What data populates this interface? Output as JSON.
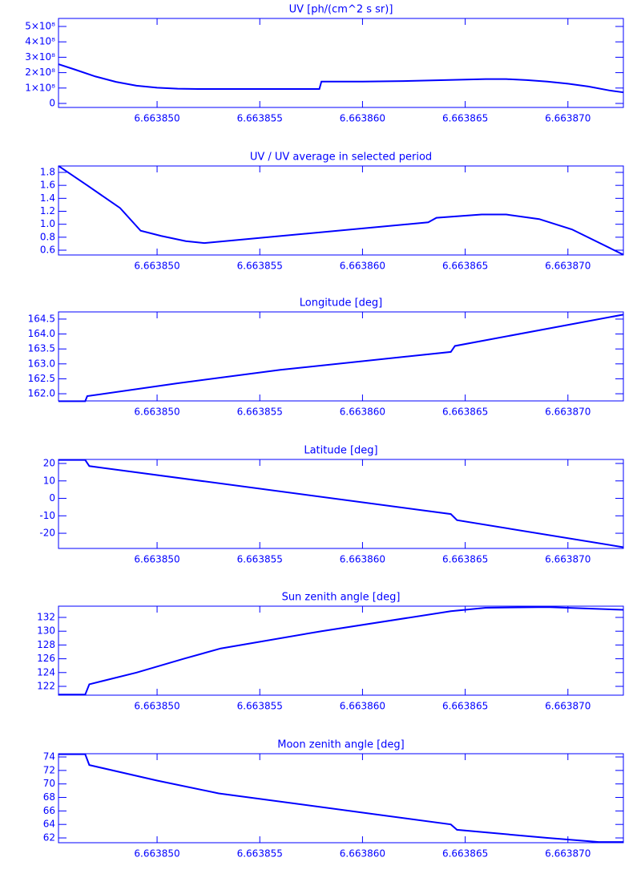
{
  "chart_data": [
    {
      "type": "line",
      "title": "UV [ph/(cm^2 s sr)]",
      "color": "#0000ff",
      "x": [
        6.6638452,
        6.663846,
        6.663847,
        6.663848,
        6.663849,
        6.66385,
        6.663851,
        6.663852,
        6.6638579,
        6.663858,
        6.66386,
        6.663862,
        6.663864,
        6.663866,
        6.663867,
        6.663868,
        6.663869,
        6.66387,
        6.663871,
        6.663872,
        6.6638727
      ],
      "values": [
        255000000,
        220000000,
        175000000,
        140000000,
        115000000,
        102000000,
        96000000,
        94000000,
        94000000,
        142000000,
        142000000,
        145000000,
        152000000,
        158000000,
        158000000,
        152000000,
        142000000,
        128000000,
        110000000,
        85000000,
        72000000
      ],
      "xlim": [
        6.6638452,
        6.6638727
      ],
      "xticks": [
        {
          "value": 6.66385,
          "label": "6.663850"
        },
        {
          "value": 6.663855,
          "label": "6.663855"
        },
        {
          "value": 6.66386,
          "label": "6.663860"
        },
        {
          "value": 6.663865,
          "label": "6.663865"
        },
        {
          "value": 6.66387,
          "label": "6.663870"
        }
      ],
      "ylim": [
        -26000000,
        552000000
      ],
      "yticks": [
        0,
        {
          "value": 100000000,
          "label": "1×10⁸"
        },
        {
          "value": 200000000,
          "label": "2×10⁸"
        },
        {
          "value": 300000000,
          "label": "3×10⁸"
        },
        {
          "value": 400000000,
          "label": "4×10⁸"
        },
        {
          "value": 500000000,
          "label": "5×10⁸"
        }
      ]
    },
    {
      "type": "line",
      "title": "UV / UV average in selected period",
      "color": "#0000ff",
      "x": [
        6.6638452,
        6.6638466,
        6.6638482,
        6.6638492,
        6.6638502,
        6.6638514,
        6.6638523,
        6.6638632,
        6.6638636,
        6.6638658,
        6.663867,
        6.6638686,
        6.6638702,
        6.6638727
      ],
      "values": [
        1.9,
        1.6,
        1.25,
        0.9,
        0.82,
        0.74,
        0.71,
        1.03,
        1.1,
        1.15,
        1.15,
        1.08,
        0.92,
        0.53
      ],
      "xlim": [
        6.6638452,
        6.6638727
      ],
      "xticks": [
        {
          "value": 6.66385,
          "label": "6.663850"
        },
        {
          "value": 6.663855,
          "label": "6.663855"
        },
        {
          "value": 6.66386,
          "label": "6.663860"
        },
        {
          "value": 6.663865,
          "label": "6.663865"
        },
        {
          "value": 6.66387,
          "label": "6.663870"
        }
      ],
      "ylim": [
        0.526,
        1.899
      ],
      "yticks": [
        0.6,
        0.8,
        {
          "value": 1,
          "label": "1.0"
        },
        1.2,
        1.4,
        1.6,
        1.8
      ]
    },
    {
      "type": "line",
      "title": "Longitude [deg]",
      "color": "#0000ff",
      "x": [
        6.6638452,
        6.6638465,
        6.6638466,
        6.663851,
        6.663856,
        6.6638643,
        6.6638645,
        6.6638727
      ],
      "values": [
        161.75,
        161.75,
        161.92,
        162.35,
        162.8,
        163.4,
        163.6,
        164.65
      ],
      "xlim": [
        6.6638452,
        6.6638727
      ],
      "xticks": [
        {
          "value": 6.66385,
          "label": "6.663850"
        },
        {
          "value": 6.663855,
          "label": "6.663855"
        },
        {
          "value": 6.66386,
          "label": "6.663860"
        },
        {
          "value": 6.663865,
          "label": "6.663865"
        },
        {
          "value": 6.66387,
          "label": "6.663870"
        }
      ],
      "ylim": [
        161.76,
        164.74
      ],
      "yticks": [
        {
          "value": 162,
          "label": "162.0"
        },
        162.5,
        {
          "value": 163,
          "label": "163.0"
        },
        163.5,
        {
          "value": 164,
          "label": "164.0"
        },
        164.5
      ]
    },
    {
      "type": "line",
      "title": "Latitude [deg]",
      "color": "#0000ff",
      "x": [
        6.6638452,
        6.6638465,
        6.6638467,
        6.6638643,
        6.6638646,
        6.6638727
      ],
      "values": [
        22,
        22,
        18.5,
        -9,
        -12.5,
        -28
      ],
      "xlim": [
        6.6638452,
        6.6638727
      ],
      "xticks": [
        {
          "value": 6.66385,
          "label": "6.663850"
        },
        {
          "value": 6.663855,
          "label": "6.663855"
        },
        {
          "value": 6.66386,
          "label": "6.663860"
        },
        {
          "value": 6.663865,
          "label": "6.663865"
        },
        {
          "value": 6.66387,
          "label": "6.663870"
        }
      ],
      "ylim": [
        -28.7,
        22.3
      ],
      "yticks": [
        -20,
        -10,
        0,
        10,
        20
      ]
    },
    {
      "type": "line",
      "title": "Sun zenith angle [deg]",
      "color": "#0000ff",
      "x": [
        6.6638452,
        6.6638465,
        6.6638467,
        6.663849,
        6.6638513,
        6.6638531,
        6.663858,
        6.6638643,
        6.663866,
        6.663869,
        6.6638727
      ],
      "values": [
        120.8,
        120.8,
        122.3,
        124,
        126,
        127.5,
        130,
        132.9,
        133.4,
        133.5,
        133.1
      ],
      "xlim": [
        6.6638452,
        6.6638727
      ],
      "xticks": [
        {
          "value": 6.66385,
          "label": "6.663850"
        },
        {
          "value": 6.663855,
          "label": "6.663855"
        },
        {
          "value": 6.66386,
          "label": "6.663860"
        },
        {
          "value": 6.663865,
          "label": "6.663865"
        },
        {
          "value": 6.66387,
          "label": "6.663870"
        }
      ],
      "ylim": [
        120.72,
        133.63
      ],
      "yticks": [
        122,
        124,
        126,
        128,
        130,
        132
      ]
    },
    {
      "type": "line",
      "title": "Moon zenith angle [deg]",
      "color": "#0000ff",
      "x": [
        6.6638452,
        6.6638465,
        6.6638467,
        6.66385,
        6.663853,
        6.6638643,
        6.6638646,
        6.663869,
        6.6638715,
        6.6638727
      ],
      "values": [
        74.4,
        74.4,
        72.8,
        70.5,
        68.6,
        64,
        63.2,
        62,
        61.4,
        61.4
      ],
      "xlim": [
        6.6638452,
        6.6638727
      ],
      "xticks": [
        {
          "value": 6.66385,
          "label": "6.663850"
        },
        {
          "value": 6.663855,
          "label": "6.663855"
        },
        {
          "value": 6.66386,
          "label": "6.663860"
        },
        {
          "value": 6.663865,
          "label": "6.663865"
        },
        {
          "value": 6.66387,
          "label": "6.663870"
        }
      ],
      "ylim": [
        61.29,
        74.48
      ],
      "yticks": [
        62,
        64,
        66,
        68,
        70,
        72,
        74
      ]
    }
  ]
}
